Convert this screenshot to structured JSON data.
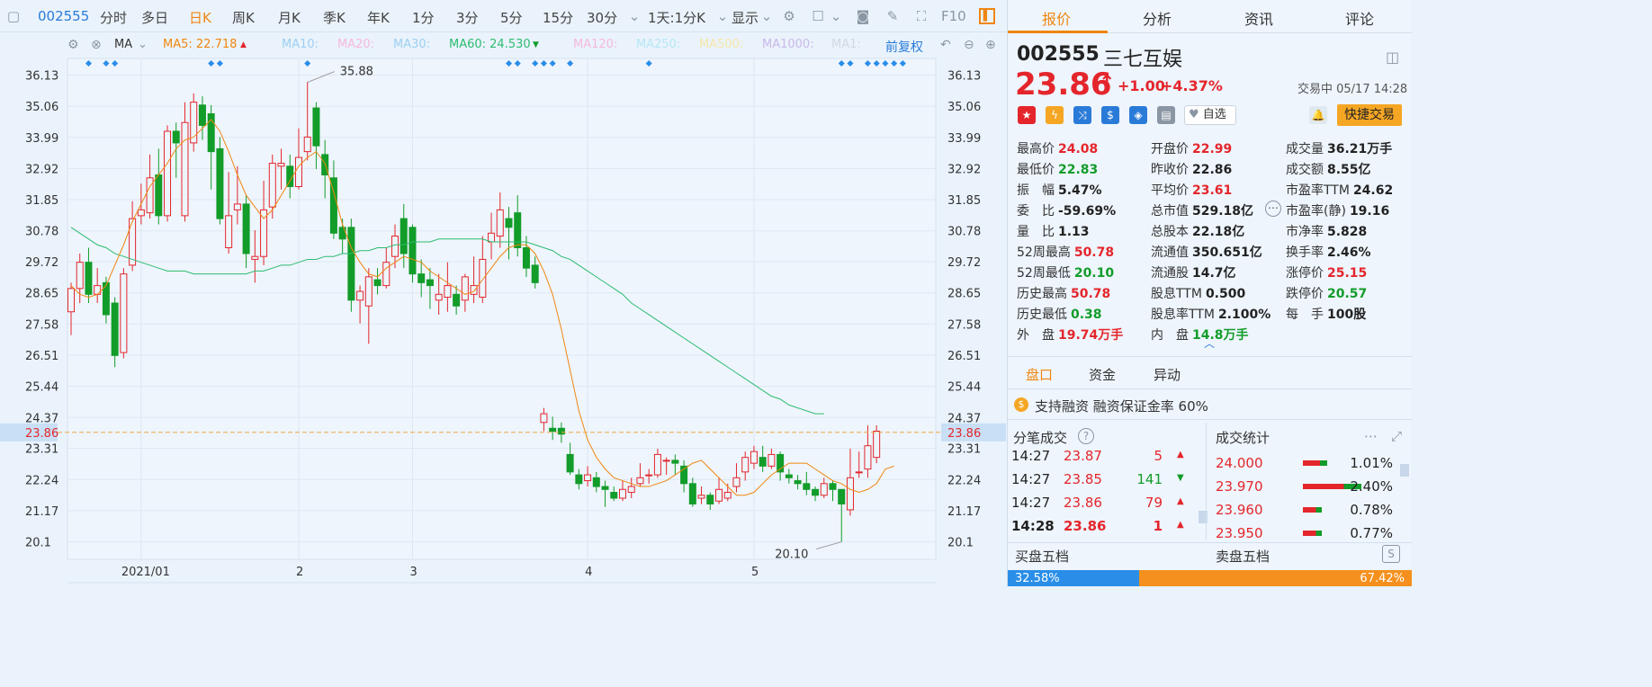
{
  "toolbar": {
    "code": "002555",
    "periods": [
      "分时",
      "多日",
      "日K",
      "周K",
      "月K",
      "季K",
      "年K",
      "1分",
      "3分",
      "5分",
      "15分",
      "30分"
    ],
    "active_period": "日K",
    "range_label": "1天:1分K",
    "display_label": "显示",
    "f10_label": "F10"
  },
  "ma_bar": {
    "ma_label": "MA",
    "ma5": "MA5: 22.718",
    "ma10": "MA10:",
    "ma20": "MA20:",
    "ma30": "MA30:",
    "ma60": "MA60: 24.530",
    "ma120": "MA120:",
    "ma250": "MA250:",
    "ma500": "MA500:",
    "ma1000": "MA1000:",
    "ma1": "MA1:",
    "adjust": "前复权"
  },
  "colors": {
    "up": "#e4262c",
    "down": "#129c29",
    "ma5": "#f0860f",
    "ma60": "#2dbb6f",
    "accent": "#f0860f"
  },
  "chart_data": {
    "type": "candlestick",
    "ylim": [
      19.5,
      36.7
    ],
    "y_ticks": [
      36.13,
      35.06,
      33.99,
      32.92,
      31.85,
      30.78,
      29.72,
      28.65,
      27.58,
      26.51,
      25.44,
      24.37,
      23.31,
      22.24,
      21.17,
      20.1
    ],
    "x_labels": [
      {
        "label": "2021/01",
        "i": 8
      },
      {
        "label": "2",
        "i": 26
      },
      {
        "label": "3",
        "i": 39
      },
      {
        "label": "4",
        "i": 59
      },
      {
        "label": "5",
        "i": 78
      }
    ],
    "current_price": "23.86",
    "high_label": "35.88",
    "low_label": "20.10",
    "candles": [
      [
        28.0,
        28.8,
        29.0,
        27.2
      ],
      [
        28.8,
        29.7,
        30.0,
        28.3
      ],
      [
        29.7,
        28.6,
        30.2,
        28.3
      ],
      [
        28.6,
        28.9,
        29.5,
        28.3
      ],
      [
        29.0,
        27.9,
        29.2,
        27.6
      ],
      [
        28.3,
        26.5,
        28.5,
        26.1
      ],
      [
        26.6,
        29.3,
        29.5,
        26.4
      ],
      [
        29.6,
        31.2,
        31.8,
        29.4
      ],
      [
        31.3,
        31.5,
        32.4,
        31.0
      ],
      [
        31.4,
        32.6,
        33.4,
        31.2
      ],
      [
        32.7,
        31.3,
        33.6,
        31.0
      ],
      [
        31.3,
        34.2,
        34.4,
        31.1
      ],
      [
        34.2,
        33.8,
        34.5,
        32.6
      ],
      [
        31.3,
        34.5,
        35.2,
        31.1
      ],
      [
        33.8,
        35.2,
        35.5,
        33.5
      ],
      [
        35.1,
        34.4,
        35.4,
        33.9
      ],
      [
        34.8,
        33.5,
        35.1,
        32.2
      ],
      [
        33.6,
        31.2,
        34.0,
        31.0
      ],
      [
        30.2,
        31.3,
        32.8,
        30.0
      ],
      [
        31.5,
        31.7,
        33.0,
        31.0
      ],
      [
        31.7,
        30.0,
        32.0,
        29.5
      ],
      [
        29.8,
        29.9,
        30.8,
        29.0
      ],
      [
        29.9,
        31.5,
        32.5,
        29.6
      ],
      [
        31.6,
        33.1,
        33.4,
        31.2
      ],
      [
        33.0,
        33.1,
        33.6,
        32.2
      ],
      [
        33.0,
        32.3,
        33.4,
        31.9
      ],
      [
        32.3,
        33.3,
        34.3,
        32.2
      ],
      [
        33.5,
        34.0,
        35.9,
        33.2
      ],
      [
        35.0,
        33.7,
        35.2,
        32.9
      ],
      [
        33.4,
        32.7,
        33.9,
        31.9
      ],
      [
        32.6,
        30.7,
        33.2,
        30.5
      ],
      [
        30.9,
        30.5,
        31.2,
        30.0
      ],
      [
        30.9,
        28.4,
        31.2,
        28.0
      ],
      [
        28.4,
        28.7,
        28.9,
        27.6
      ],
      [
        28.2,
        29.2,
        29.5,
        26.9
      ],
      [
        29.1,
        28.9,
        29.5,
        28.6
      ],
      [
        28.9,
        29.7,
        30.2,
        28.8
      ],
      [
        29.9,
        30.6,
        31.0,
        29.5
      ],
      [
        31.2,
        30.0,
        31.7,
        29.5
      ],
      [
        30.9,
        29.3,
        31.0,
        29.0
      ],
      [
        29.3,
        29.0,
        29.8,
        28.5
      ],
      [
        29.1,
        28.9,
        29.5,
        28.1
      ],
      [
        28.4,
        28.6,
        29.3,
        27.9
      ],
      [
        28.5,
        28.9,
        29.7,
        28.0
      ],
      [
        28.6,
        28.2,
        28.9,
        27.9
      ],
      [
        28.4,
        29.2,
        29.3,
        28.0
      ],
      [
        28.6,
        28.9,
        29.9,
        28.3
      ],
      [
        28.5,
        29.8,
        30.6,
        28.3
      ],
      [
        30.4,
        30.7,
        31.4,
        29.8
      ],
      [
        30.6,
        31.5,
        32.1,
        30.2
      ],
      [
        31.2,
        30.9,
        31.6,
        29.8
      ],
      [
        31.4,
        30.2,
        32.0,
        29.9
      ],
      [
        30.2,
        29.5,
        30.6,
        29.2
      ],
      [
        29.6,
        29.0,
        29.9,
        28.8
      ],
      [
        24.2,
        24.5,
        24.7,
        23.9
      ],
      [
        24.0,
        23.9,
        24.4,
        23.6
      ],
      [
        24.0,
        23.8,
        24.2,
        23.5
      ],
      [
        23.1,
        22.5,
        23.5,
        22.4
      ],
      [
        22.4,
        22.1,
        22.6,
        21.9
      ],
      [
        22.2,
        22.4,
        22.7,
        22.0
      ],
      [
        22.3,
        22.0,
        22.5,
        21.8
      ],
      [
        22.0,
        21.9,
        22.2,
        21.3
      ],
      [
        21.8,
        21.6,
        22.0,
        21.5
      ],
      [
        21.6,
        21.9,
        22.2,
        21.5
      ],
      [
        21.8,
        22.0,
        22.3,
        21.6
      ],
      [
        22.1,
        22.3,
        22.8,
        22.0
      ],
      [
        22.4,
        22.4,
        22.6,
        22.1
      ],
      [
        22.4,
        23.1,
        23.3,
        22.3
      ],
      [
        22.9,
        22.9,
        23.0,
        22.4
      ],
      [
        22.9,
        22.8,
        23.1,
        22.4
      ],
      [
        22.7,
        22.1,
        22.9,
        21.8
      ],
      [
        22.1,
        21.4,
        22.3,
        21.3
      ],
      [
        21.6,
        21.7,
        22.0,
        21.4
      ],
      [
        21.7,
        21.4,
        21.8,
        21.2
      ],
      [
        21.5,
        21.9,
        22.3,
        21.4
      ],
      [
        21.6,
        21.8,
        22.1,
        21.5
      ],
      [
        22.0,
        22.3,
        22.8,
        21.8
      ],
      [
        22.5,
        23.0,
        23.2,
        22.2
      ],
      [
        22.8,
        23.2,
        23.4,
        22.6
      ],
      [
        23.0,
        22.7,
        23.4,
        22.5
      ],
      [
        22.7,
        23.1,
        23.3,
        22.6
      ],
      [
        23.1,
        22.5,
        23.2,
        22.2
      ],
      [
        22.4,
        22.3,
        22.6,
        22.1
      ],
      [
        22.2,
        22.1,
        22.4,
        21.9
      ],
      [
        22.1,
        21.9,
        22.5,
        21.7
      ],
      [
        21.9,
        21.7,
        22.0,
        21.5
      ],
      [
        21.7,
        22.1,
        22.3,
        21.6
      ],
      [
        22.1,
        21.9,
        22.2,
        21.5
      ],
      [
        21.9,
        21.4,
        21.9,
        20.1
      ],
      [
        21.2,
        22.3,
        23.3,
        21.0
      ],
      [
        22.5,
        22.5,
        23.2,
        22.3
      ],
      [
        22.6,
        23.4,
        24.1,
        22.3
      ],
      [
        23.0,
        23.9,
        24.1,
        22.8
      ]
    ],
    "ma5": [
      28.9,
      28.6,
      28.5,
      28.6,
      28.9,
      29.6,
      30.3,
      31.1,
      31.7,
      32.3,
      32.7,
      33.1,
      33.6,
      33.9,
      34.0,
      34.3,
      34.6,
      34.2,
      33.5,
      32.7,
      32.0,
      31.6,
      31.2,
      31.5,
      32.0,
      32.5,
      33.0,
      33.3,
      33.5,
      33.1,
      32.1,
      31.0,
      30.2,
      29.7,
      29.3,
      29.2,
      29.5,
      29.7,
      29.9,
      29.8,
      29.7,
      29.4,
      29.2,
      29.0,
      28.8,
      28.6,
      28.7,
      29.1,
      29.5,
      29.9,
      30.2,
      30.3,
      30.3,
      30.0,
      29.4,
      28.6,
      27.4,
      26.0,
      24.6,
      23.6,
      23.0,
      22.6,
      22.3,
      22.2,
      22.1,
      22.0,
      22.0,
      22.1,
      22.2,
      22.4,
      22.6,
      22.8,
      22.9,
      22.6,
      22.3,
      22.0,
      21.7,
      21.7,
      21.8,
      22.1,
      22.4,
      22.6,
      22.8,
      22.8,
      22.8,
      22.6,
      22.4,
      22.2,
      22.1,
      21.9,
      21.8,
      21.9,
      22.1,
      22.6,
      22.7
    ],
    "ma60": [
      30.9,
      30.7,
      30.5,
      30.3,
      30.2,
      30.0,
      29.9,
      29.8,
      29.7,
      29.6,
      29.5,
      29.4,
      29.4,
      29.4,
      29.3,
      29.3,
      29.3,
      29.3,
      29.3,
      29.3,
      29.3,
      29.4,
      29.4,
      29.5,
      29.6,
      29.6,
      29.7,
      29.8,
      29.8,
      29.9,
      29.9,
      30.0,
      30.0,
      30.1,
      30.1,
      30.2,
      30.2,
      30.3,
      30.3,
      30.4,
      30.4,
      30.4,
      30.5,
      30.5,
      30.5,
      30.5,
      30.5,
      30.5,
      30.4,
      30.4,
      30.4,
      30.4,
      30.4,
      30.3,
      30.2,
      30.1,
      29.9,
      29.8,
      29.6,
      29.4,
      29.2,
      29.0,
      28.8,
      28.6,
      28.3,
      28.1,
      27.9,
      27.7,
      27.5,
      27.3,
      27.1,
      26.9,
      26.7,
      26.5,
      26.3,
      26.1,
      25.9,
      25.7,
      25.5,
      25.3,
      25.1,
      25.0,
      24.8,
      24.7,
      24.6,
      24.5,
      24.5
    ]
  },
  "quote": {
    "code": "002555",
    "name": "三七互娱",
    "price": "23.86",
    "change": "+1.00",
    "change_pct": "+4.37%",
    "status": "交易中 05/17 14:28",
    "fav_label": "自选",
    "trade_button": "快捷交易"
  },
  "tabs": [
    "报价",
    "分析",
    "资讯",
    "评论"
  ],
  "stats": [
    [
      {
        "k": "最高价",
        "v": "24.08",
        "c": "red"
      },
      {
        "k": "开盘价",
        "v": "22.99",
        "c": "red"
      },
      {
        "k": "成交量",
        "v": "36.21万手",
        "c": "dark"
      }
    ],
    [
      {
        "k": "最低价",
        "v": "22.83",
        "c": "green"
      },
      {
        "k": "昨收价",
        "v": "22.86",
        "c": "dark"
      },
      {
        "k": "成交额",
        "v": "8.55亿",
        "c": "dark"
      }
    ],
    [
      {
        "k": "振　幅",
        "v": "5.47%",
        "c": "dark"
      },
      {
        "k": "平均价",
        "v": "23.61",
        "c": "red"
      },
      {
        "k": "市盈率TTM",
        "v": "24.62",
        "c": "dark"
      }
    ],
    [
      {
        "k": "委　比",
        "v": "-59.69%",
        "c": "dark"
      },
      {
        "k": "总市值",
        "v": "529.18亿",
        "c": "dark"
      },
      {
        "k": "市盈率(静)",
        "v": "19.16",
        "c": "dark"
      }
    ],
    [
      {
        "k": "量　比",
        "v": "1.13",
        "c": "dark"
      },
      {
        "k": "总股本",
        "v": "22.18亿",
        "c": "dark"
      },
      {
        "k": "市净率",
        "v": "5.828",
        "c": "dark"
      }
    ],
    [
      {
        "k": "52周最高",
        "v": "50.78",
        "c": "red"
      },
      {
        "k": "流通值",
        "v": "350.651亿",
        "c": "dark"
      },
      {
        "k": "换手率",
        "v": "2.46%",
        "c": "dark"
      }
    ],
    [
      {
        "k": "52周最低",
        "v": "20.10",
        "c": "green"
      },
      {
        "k": "流通股",
        "v": "14.7亿",
        "c": "dark"
      },
      {
        "k": "涨停价",
        "v": "25.15",
        "c": "red"
      }
    ],
    [
      {
        "k": "历史最高",
        "v": "50.78",
        "c": "red"
      },
      {
        "k": "股息TTM",
        "v": "0.500",
        "c": "dark"
      },
      {
        "k": "跌停价",
        "v": "20.57",
        "c": "green"
      }
    ],
    [
      {
        "k": "历史最低",
        "v": "0.38",
        "c": "green"
      },
      {
        "k": "股息率TTM",
        "v": "2.100%",
        "c": "dark"
      },
      {
        "k": "每　手",
        "v": "100股",
        "c": "dark"
      }
    ],
    [
      {
        "k": "外　盘",
        "v": "19.74万手",
        "c": "red"
      },
      {
        "k": "内　盘",
        "v": "14.8万手",
        "c": "green"
      }
    ]
  ],
  "subtabs": [
    "盘口",
    "资金",
    "异动"
  ],
  "margin_note": "支持融资 融资保证金率 60%",
  "ticks_title": "分笔成交",
  "ticks": [
    {
      "t": "14:27",
      "p": "23.87",
      "v": "5",
      "dir": "up"
    },
    {
      "t": "14:27",
      "p": "23.85",
      "v": "141",
      "dir": "down"
    },
    {
      "t": "14:27",
      "p": "23.86",
      "v": "79",
      "dir": "up"
    },
    {
      "t": "14:28",
      "p": "23.86",
      "v": "1",
      "dir": "up"
    }
  ],
  "stat_title": "成交统计",
  "stat_rows": [
    {
      "p": "24.000",
      "pct": "1.01%",
      "share": 0.0101
    },
    {
      "p": "23.970",
      "pct": "2.40%",
      "share": 0.024
    },
    {
      "p": "23.960",
      "pct": "0.78%",
      "share": 0.0078
    },
    {
      "p": "23.950",
      "pct": "0.77%",
      "share": 0.0077
    }
  ],
  "buy_title": "买盘五档",
  "sell_title": "卖盘五档",
  "buy_pct": "32.58%",
  "sell_pct": "67.42%",
  "buy_share": 0.3258
}
